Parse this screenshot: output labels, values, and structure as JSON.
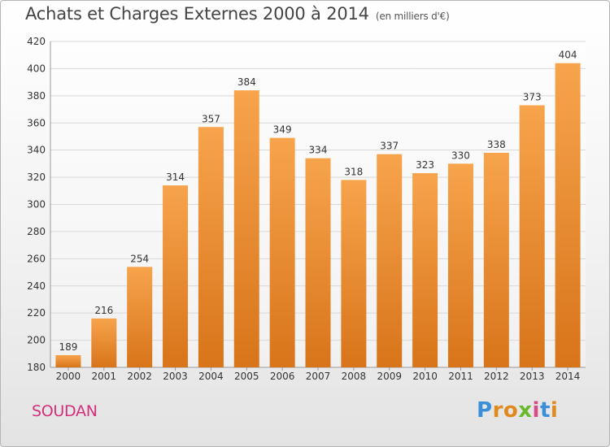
{
  "title": "Achats et Charges Externes 2000 à 2014",
  "subtitle": "(en milliers d'€)",
  "commune": "SOUDAN",
  "logo": {
    "letters": [
      "P",
      "r",
      "o",
      "x",
      "i",
      "t",
      "i"
    ],
    "colors": [
      "#3a8fd8",
      "#e08a1e",
      "#e08a1e",
      "#6ab82c",
      "#d84a8a",
      "#3a8fd8",
      "#e08a1e"
    ]
  },
  "colors": {
    "bar_light": "#f7a44c",
    "bar_dark": "#d8741a",
    "grid": "#d8d8d8",
    "axis_text": "#333333"
  },
  "chart_data": {
    "type": "bar",
    "title": "Achats et Charges Externes 2000 à 2014",
    "subtitle": "(en milliers d'€)",
    "categories": [
      "2000",
      "2001",
      "2002",
      "2003",
      "2004",
      "2005",
      "2006",
      "2007",
      "2008",
      "2009",
      "2010",
      "2011",
      "2012",
      "2013",
      "2014"
    ],
    "values": [
      189,
      216,
      254,
      314,
      357,
      384,
      349,
      334,
      318,
      337,
      323,
      330,
      338,
      373,
      404
    ],
    "ylim": [
      180,
      420
    ],
    "yticks": [
      180,
      200,
      220,
      240,
      260,
      280,
      300,
      320,
      340,
      360,
      380,
      400,
      420
    ],
    "grid": true,
    "data_labels": true
  }
}
